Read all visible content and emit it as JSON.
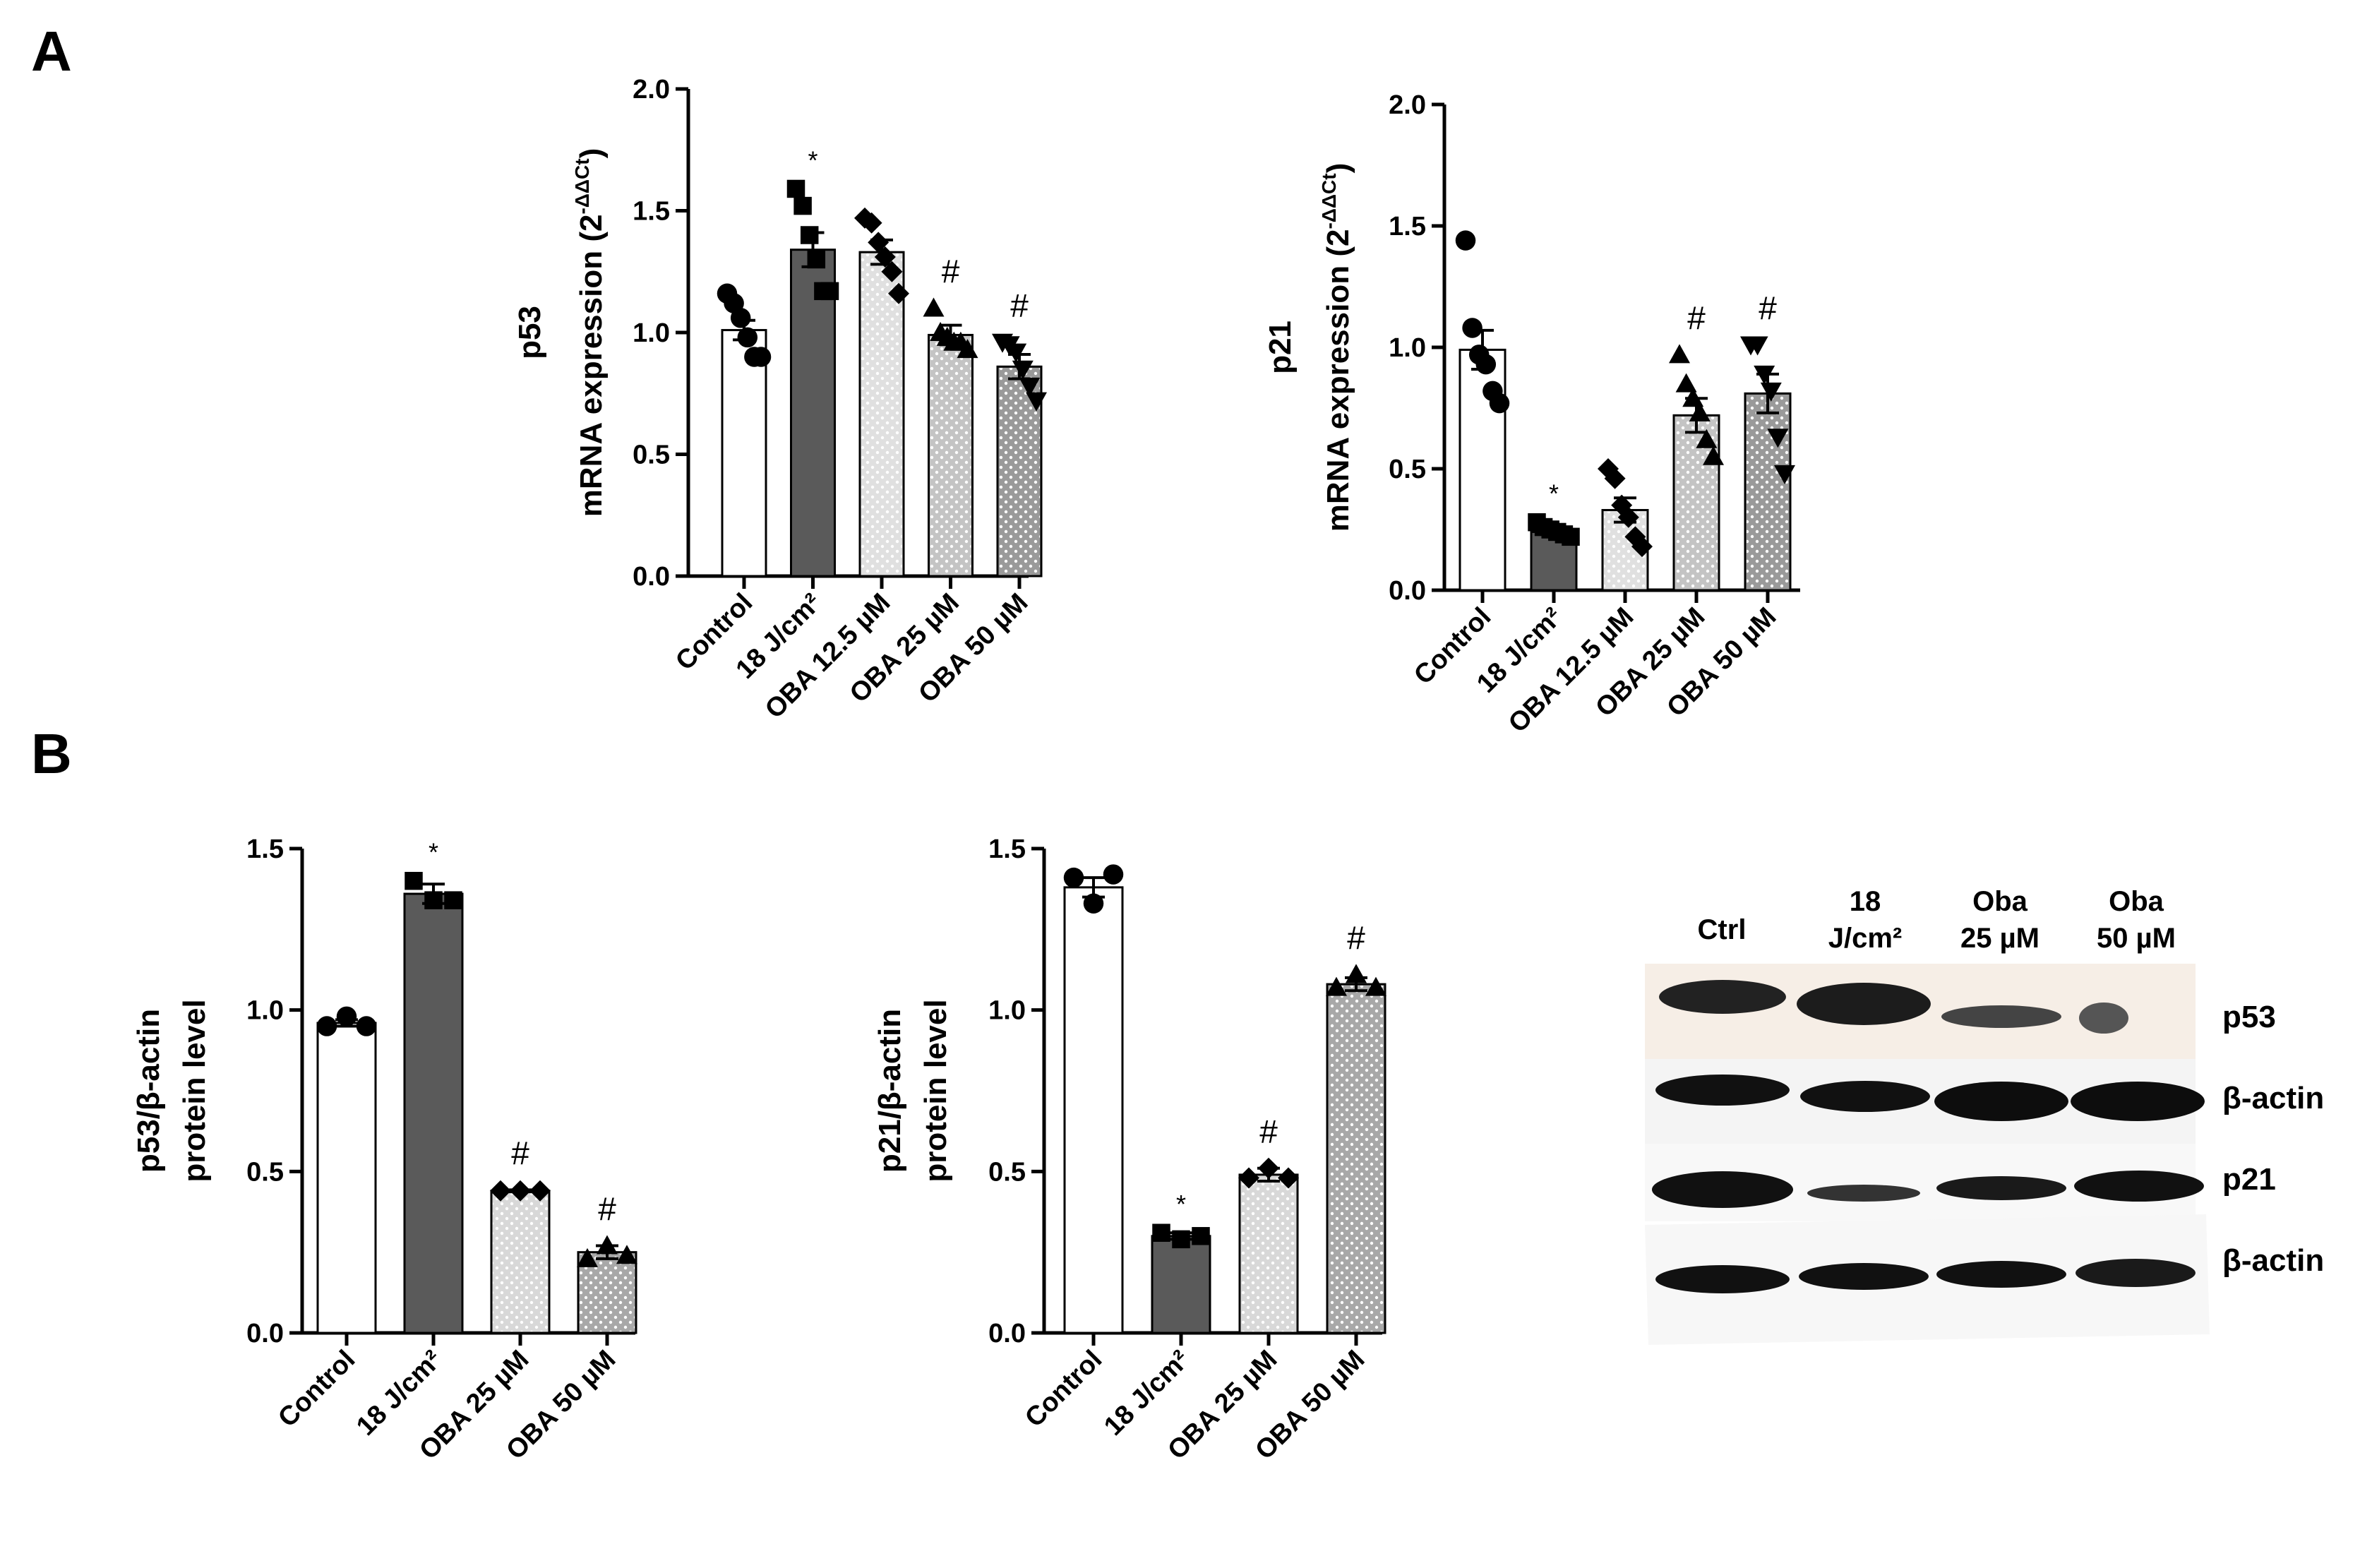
{
  "panels": {
    "a": "A",
    "b": "B"
  },
  "chart_data": [
    {
      "type": "bar",
      "ylabel": "p53",
      "ylabel2": "mRNA expression (2",
      "ylabel2_sup": "-ΔΔCt",
      "ylabel2_end": ")",
      "categories": [
        "Control",
        "18 J/cm²",
        "OBA 12.5 µM",
        "OBA 25 µM",
        "OBA 50 µM"
      ],
      "values": [
        1.01,
        1.34,
        1.33,
        0.99,
        0.86
      ],
      "errors": [
        0.04,
        0.07,
        0.05,
        0.04,
        0.05
      ],
      "points": [
        [
          1.16,
          1.12,
          1.06,
          0.98,
          0.9,
          0.9
        ],
        [
          1.59,
          1.52,
          1.4,
          1.3,
          1.17,
          1.17
        ],
        [
          1.47,
          1.45,
          1.37,
          1.31,
          1.25,
          1.16
        ],
        [
          1.1,
          1.0,
          0.98,
          0.96,
          0.96,
          0.93
        ],
        [
          0.96,
          0.95,
          0.92,
          0.85,
          0.78,
          0.72
        ]
      ],
      "annotations": [
        null,
        "*",
        null,
        "#",
        "#"
      ],
      "colors": [
        "#ffffff",
        "#5a5a5a",
        "#e0e0e0",
        "#c4c4c4",
        "#9a9a9a"
      ],
      "dotted": [
        false,
        false,
        true,
        true,
        true
      ],
      "markers": [
        "circle",
        "square",
        "diamond",
        "triangle-up",
        "triangle-down"
      ],
      "ylim": [
        0,
        2
      ],
      "yticks": [
        {
          "value": 0,
          "label": "0.0"
        },
        0.5,
        {
          "value": 1,
          "label": "1.0"
        },
        1.5,
        {
          "value": 2,
          "label": "2.0"
        }
      ]
    },
    {
      "type": "bar",
      "ylabel": "p21",
      "ylabel2": "mRNA expression (2",
      "ylabel2_sup": "-ΔΔCt",
      "ylabel2_end": ")",
      "categories": [
        "Control",
        "18 J/cm²",
        "OBA 12.5 µM",
        "OBA 25 µM",
        "OBA 50 µM"
      ],
      "values": [
        0.99,
        0.24,
        0.33,
        0.72,
        0.81
      ],
      "errors": [
        0.08,
        0.02,
        0.05,
        0.07,
        0.08
      ],
      "points": [
        [
          1.44,
          1.08,
          0.97,
          0.93,
          0.82,
          0.77
        ],
        [
          0.28,
          0.26,
          0.25,
          0.24,
          0.23,
          0.22
        ],
        [
          0.5,
          0.46,
          0.35,
          0.3,
          0.22,
          0.18
        ],
        [
          0.97,
          0.85,
          0.79,
          0.73,
          0.62,
          0.55
        ],
        [
          1.01,
          1.01,
          0.89,
          0.82,
          0.63,
          0.48
        ]
      ],
      "annotations": [
        null,
        "*",
        null,
        "#",
        "#"
      ],
      "colors": [
        "#ffffff",
        "#5a5a5a",
        "#e0e0e0",
        "#c4c4c4",
        "#9a9a9a"
      ],
      "dotted": [
        false,
        false,
        true,
        true,
        true
      ],
      "markers": [
        "circle",
        "square",
        "diamond",
        "triangle-up",
        "triangle-down"
      ],
      "ylim": [
        0,
        2
      ],
      "yticks": [
        {
          "value": 0,
          "label": "0.0"
        },
        0.5,
        {
          "value": 1,
          "label": "1.0"
        },
        1.5,
        {
          "value": 2,
          "label": "2.0"
        }
      ]
    },
    {
      "type": "bar",
      "ylabel": "p53/β-actin",
      "ylabel2": "protein level",
      "categories": [
        "Control",
        "18 J/cm²",
        "OBA 25 µM",
        "OBA 50 µM"
      ],
      "values": [
        0.96,
        1.36,
        0.44,
        0.25
      ],
      "errors": [
        0.01,
        0.03,
        0.003,
        0.02
      ],
      "points": [
        [
          0.95,
          0.98,
          0.95
        ],
        [
          1.4,
          1.34,
          1.34
        ],
        [
          0.44,
          0.44,
          0.44
        ],
        [
          0.23,
          0.27,
          0.24
        ]
      ],
      "annotations": [
        null,
        "*",
        "#",
        "#"
      ],
      "colors": [
        "#ffffff",
        "#5a5a5a",
        "#d8d8d8",
        "#a8a8a8"
      ],
      "dotted": [
        false,
        false,
        true,
        true
      ],
      "markers": [
        "circle",
        "square",
        "diamond",
        "triangle-up"
      ],
      "ylim": [
        0,
        1.5
      ],
      "yticks": [
        {
          "value": 0,
          "label": "0.0"
        },
        0.5,
        {
          "value": 1,
          "label": "1.0"
        },
        1.5
      ]
    },
    {
      "type": "bar",
      "ylabel": "p21/β-actin",
      "ylabel2": "protein level",
      "categories": [
        "Control",
        "18 J/cm²",
        "OBA 25 µM",
        "OBA 50 µM"
      ],
      "values": [
        1.38,
        0.3,
        0.49,
        1.08
      ],
      "errors": [
        0.03,
        0.01,
        0.02,
        0.02
      ],
      "points": [
        [
          1.41,
          1.33,
          1.42
        ],
        [
          0.31,
          0.29,
          0.3
        ],
        [
          0.48,
          0.51,
          0.48
        ],
        [
          1.07,
          1.11,
          1.07
        ]
      ],
      "annotations": [
        null,
        "*",
        "#",
        "#"
      ],
      "colors": [
        "#ffffff",
        "#5a5a5a",
        "#d8d8d8",
        "#a8a8a8"
      ],
      "dotted": [
        false,
        false,
        true,
        true
      ],
      "markers": [
        "circle",
        "square",
        "diamond",
        "triangle-up"
      ],
      "ylim": [
        0,
        1.5
      ],
      "yticks": [
        {
          "value": 0,
          "label": "0.0"
        },
        0.5,
        {
          "value": 1,
          "label": "1.0"
        },
        1.5
      ]
    }
  ],
  "blot": {
    "columns": [
      [
        "Ctrl"
      ],
      [
        "18",
        "J/cm²"
      ],
      [
        "Oba",
        "25 µM"
      ],
      [
        "Oba",
        "50 µM"
      ]
    ],
    "rows": [
      "p53",
      "β-actin",
      "p21",
      "β-actin"
    ]
  }
}
